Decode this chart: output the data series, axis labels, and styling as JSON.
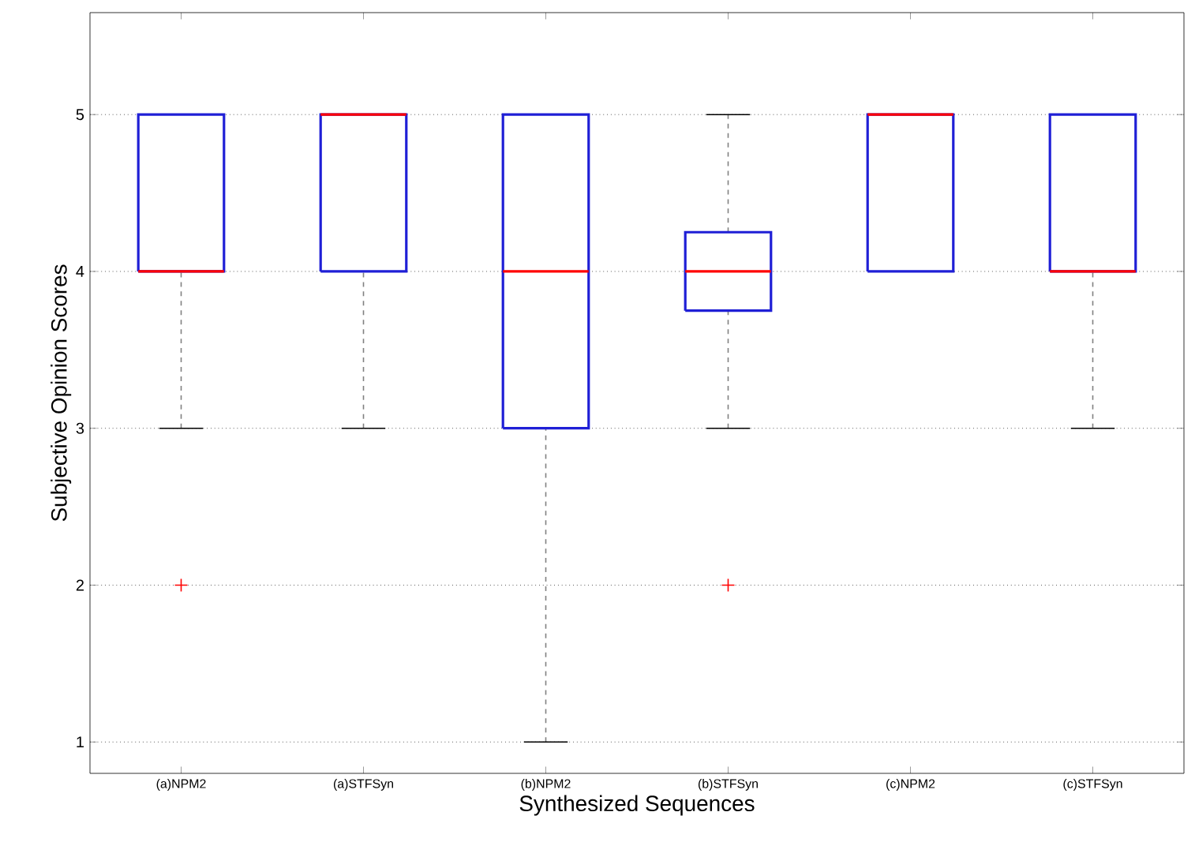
{
  "chart_data": {
    "type": "box",
    "xlabel": "Synthesized Sequences",
    "ylabel": "Subjective Opinion Scores",
    "categories": [
      "(a)NPM2",
      "(a)STFSyn",
      "(b)NPM2",
      "(b)STFSyn",
      "(c)NPM2",
      "(c)STFSyn"
    ],
    "series": [
      {
        "color": "#1f1fd6",
        "boxes": [
          {
            "low": 3,
            "q1": 4,
            "median": 4,
            "q3": 5,
            "high": 5,
            "outliers": [
              2
            ]
          },
          {
            "low": 3,
            "q1": 4,
            "median": 5,
            "q3": 5,
            "high": 5
          },
          {
            "low": 1,
            "q1": 3,
            "median": 4,
            "q3": 5,
            "high": 5
          },
          {
            "low": 3,
            "q1": 3.75,
            "median": 4,
            "q3": 4.25,
            "high": 5,
            "outliers": [
              2
            ]
          },
          {
            "low": 4,
            "q1": 4,
            "median": 5,
            "q3": 5,
            "high": 5
          },
          {
            "low": 3,
            "q1": 4,
            "median": 4,
            "q3": 5,
            "high": 5
          }
        ]
      }
    ],
    "ylim": [
      0.8,
      5.65
    ],
    "yticks": [
      1,
      2,
      3,
      4,
      5
    ],
    "grid": "y"
  }
}
